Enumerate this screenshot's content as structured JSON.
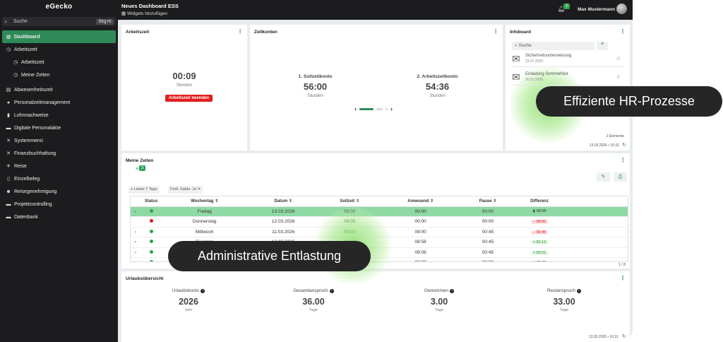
{
  "app": {
    "logo": "eGecko"
  },
  "sidebar": {
    "search_placeholder": "Suche",
    "search_shortcut": "Strg+K",
    "items": [
      {
        "label": "Dashboard",
        "icon": "grid-icon"
      },
      {
        "label": "Arbeitszeit",
        "icon": "clock-icon"
      },
      {
        "label": "Arbeitszeit",
        "icon": "clock-icon"
      },
      {
        "label": "Meine Zeiten",
        "icon": "clock-icon"
      },
      {
        "label": "Abwesenheitszeit",
        "icon": "calendar-icon"
      },
      {
        "label": "Personalzeitmanagement",
        "icon": "person-icon"
      },
      {
        "label": "Lohnnachweise",
        "icon": "document-icon"
      },
      {
        "label": "Digitale Personalakte",
        "icon": "folder-icon"
      },
      {
        "label": "Systemmenü",
        "icon": "tools-icon"
      },
      {
        "label": "Finanzbuchhaltung",
        "icon": "tools-icon"
      },
      {
        "label": "Reise",
        "icon": "plane-icon"
      },
      {
        "label": "Einzelbeleg",
        "icon": "receipt-icon"
      },
      {
        "label": "Reisegenehmigung",
        "icon": "people-icon"
      },
      {
        "label": "Projektcontrolling",
        "icon": "folder-icon"
      },
      {
        "label": "Datenbank",
        "icon": "folder-icon"
      }
    ]
  },
  "header": {
    "title": "Neues Dashboard ESS",
    "add_widgets": "Widgets hinzufügen",
    "notification_count": "2",
    "user_name": "Max Mustermann"
  },
  "arbeitszeit": {
    "title": "Arbeitszeit",
    "time": "00:09",
    "unit": "Stunden",
    "button": "Arbeitszeit beenden"
  },
  "zeitkonten": {
    "title": "Zeitkonten",
    "accounts": [
      {
        "label": "1. Sollzeitkonto",
        "value": "56:00",
        "unit": "Stunden"
      },
      {
        "label": "2. Arbeitszeitkonto",
        "value": "54:36",
        "unit": "Stunden"
      }
    ]
  },
  "infoboard": {
    "title": "Infoboard",
    "search_placeholder": "Suche",
    "items": [
      {
        "title": "Sicherheitsunterweisung",
        "date": "23.07.2025"
      },
      {
        "title": "Einladung Sommerfest",
        "date": "30.01.2025"
      }
    ],
    "count": "2 Elemente",
    "timestamp": "13.03.2026 • 10:31"
  },
  "meine_zeiten": {
    "title": "Meine Zeiten",
    "badge": "3",
    "filters": [
      "Letzte 7 Tage",
      "Fortl. Saldo: Ja"
    ],
    "columns": [
      "Status",
      "Wochentag",
      "Datum",
      "Sollzeit",
      "Anwesend",
      "Pause",
      "Differenz"
    ],
    "rows": [
      {
        "status": "green",
        "day": "Freitag",
        "date": "13.03.2026",
        "soll": "08:00",
        "anw": "00:00",
        "pause": "00:00",
        "diff": "00:00",
        "diff_type": "neutral",
        "hl": true
      },
      {
        "status": "red",
        "day": "Donnerstag",
        "date": "12.03.2026",
        "soll": "08:00",
        "anw": "00:00",
        "pause": "00:00",
        "diff": "08:00",
        "diff_type": "neg",
        "hl": false
      },
      {
        "status": "green",
        "day": "Mittwoch",
        "date": "11.03.2026",
        "soll": "08:00",
        "anw": "08:00",
        "pause": "00:45",
        "diff": "00:45",
        "diff_type": "neg",
        "hl": false
      },
      {
        "status": "green",
        "day": "Dienstag",
        "date": "10.03.2026",
        "soll": "08:00",
        "anw": "08:58",
        "pause": "00:45",
        "diff": "00:13",
        "diff_type": "pos",
        "hl": false
      },
      {
        "status": "green",
        "day": "Montag",
        "date": "09.03.2026",
        "soll": "08:00",
        "anw": "09:06",
        "pause": "00:45",
        "diff": "00:21",
        "diff_type": "pos",
        "hl": false
      },
      {
        "status": "green",
        "day": "Sonntag",
        "date": "08.03.2026",
        "soll": "00:00",
        "anw": "00:00",
        "pause": "00:00",
        "diff": "00:00",
        "diff_type": "neutral",
        "hl": false
      }
    ],
    "pagination": "1 / 8"
  },
  "urlaub": {
    "title": "Urlaubsübersicht",
    "cols": [
      {
        "label": "Urlaubskonto",
        "value": "2026",
        "unit": "Jahr"
      },
      {
        "label": "Gesamtanspruch",
        "value": "36.00",
        "unit": "Tage"
      },
      {
        "label": "Genommen",
        "value": "3.00",
        "unit": "Tage"
      },
      {
        "label": "Restanspruch",
        "value": "33.00",
        "unit": "Tage"
      }
    ],
    "timestamp": "13.03.2026 • 10:31"
  },
  "overlays": {
    "pill1": "Effiziente HR-Prozesse",
    "pill2": "Administrative Entlastung"
  }
}
